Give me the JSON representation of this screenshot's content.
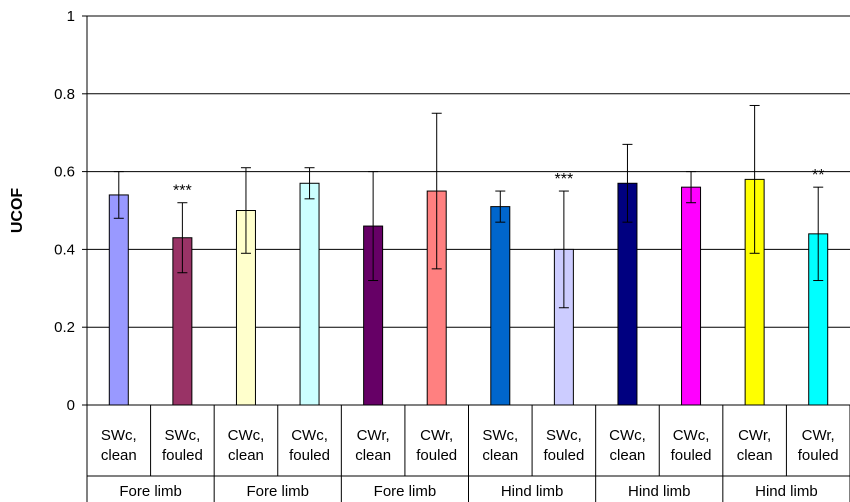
{
  "chart_data": {
    "type": "bar",
    "title": "",
    "xlabel": "",
    "ylabel": "UCOF",
    "ylim": [
      0,
      1
    ],
    "yticks": [
      "0",
      "0.2",
      "0.4",
      "0.6",
      "0.8",
      "1"
    ],
    "ytick_values": [
      0,
      0.2,
      0.4,
      0.6,
      0.8,
      1
    ],
    "grid": true,
    "legend": "none",
    "categories": [
      {
        "line1": "SWc,",
        "line2": "clean"
      },
      {
        "line1": "SWc,",
        "line2": "fouled"
      },
      {
        "line1": "CWc,",
        "line2": "clean"
      },
      {
        "line1": "CWc,",
        "line2": "fouled"
      },
      {
        "line1": "CWr,",
        "line2": "clean"
      },
      {
        "line1": "CWr,",
        "line2": "fouled"
      },
      {
        "line1": "SWc,",
        "line2": "clean"
      },
      {
        "line1": "SWc,",
        "line2": "fouled"
      },
      {
        "line1": "CWc,",
        "line2": "clean"
      },
      {
        "line1": "CWc,",
        "line2": "fouled"
      },
      {
        "line1": "CWr,",
        "line2": "clean"
      },
      {
        "line1": "CWr,",
        "line2": "fouled"
      }
    ],
    "groups": [
      "Fore limb",
      "Fore limb",
      "Fore limb",
      "Hind limb",
      "Hind limb",
      "Hind limb"
    ],
    "values": [
      0.54,
      0.43,
      0.5,
      0.57,
      0.46,
      0.55,
      0.51,
      0.4,
      0.57,
      0.56,
      0.58,
      0.44
    ],
    "error_low": [
      0.48,
      0.34,
      0.39,
      0.53,
      0.32,
      0.35,
      0.47,
      0.25,
      0.47,
      0.52,
      0.39,
      0.32
    ],
    "error_high": [
      0.6,
      0.52,
      0.61,
      0.61,
      0.6,
      0.75,
      0.55,
      0.55,
      0.67,
      0.6,
      0.77,
      0.56
    ],
    "colors": [
      "#9999FF",
      "#993366",
      "#FFFFCC",
      "#CCFFFF",
      "#660066",
      "#FF8080",
      "#0066CC",
      "#CCCCFF",
      "#000080",
      "#FF00FF",
      "#FFFF00",
      "#00FFFF"
    ],
    "annotations": [
      "",
      "***",
      "",
      "",
      "",
      "",
      "",
      "***",
      "",
      "",
      "",
      "**"
    ]
  }
}
